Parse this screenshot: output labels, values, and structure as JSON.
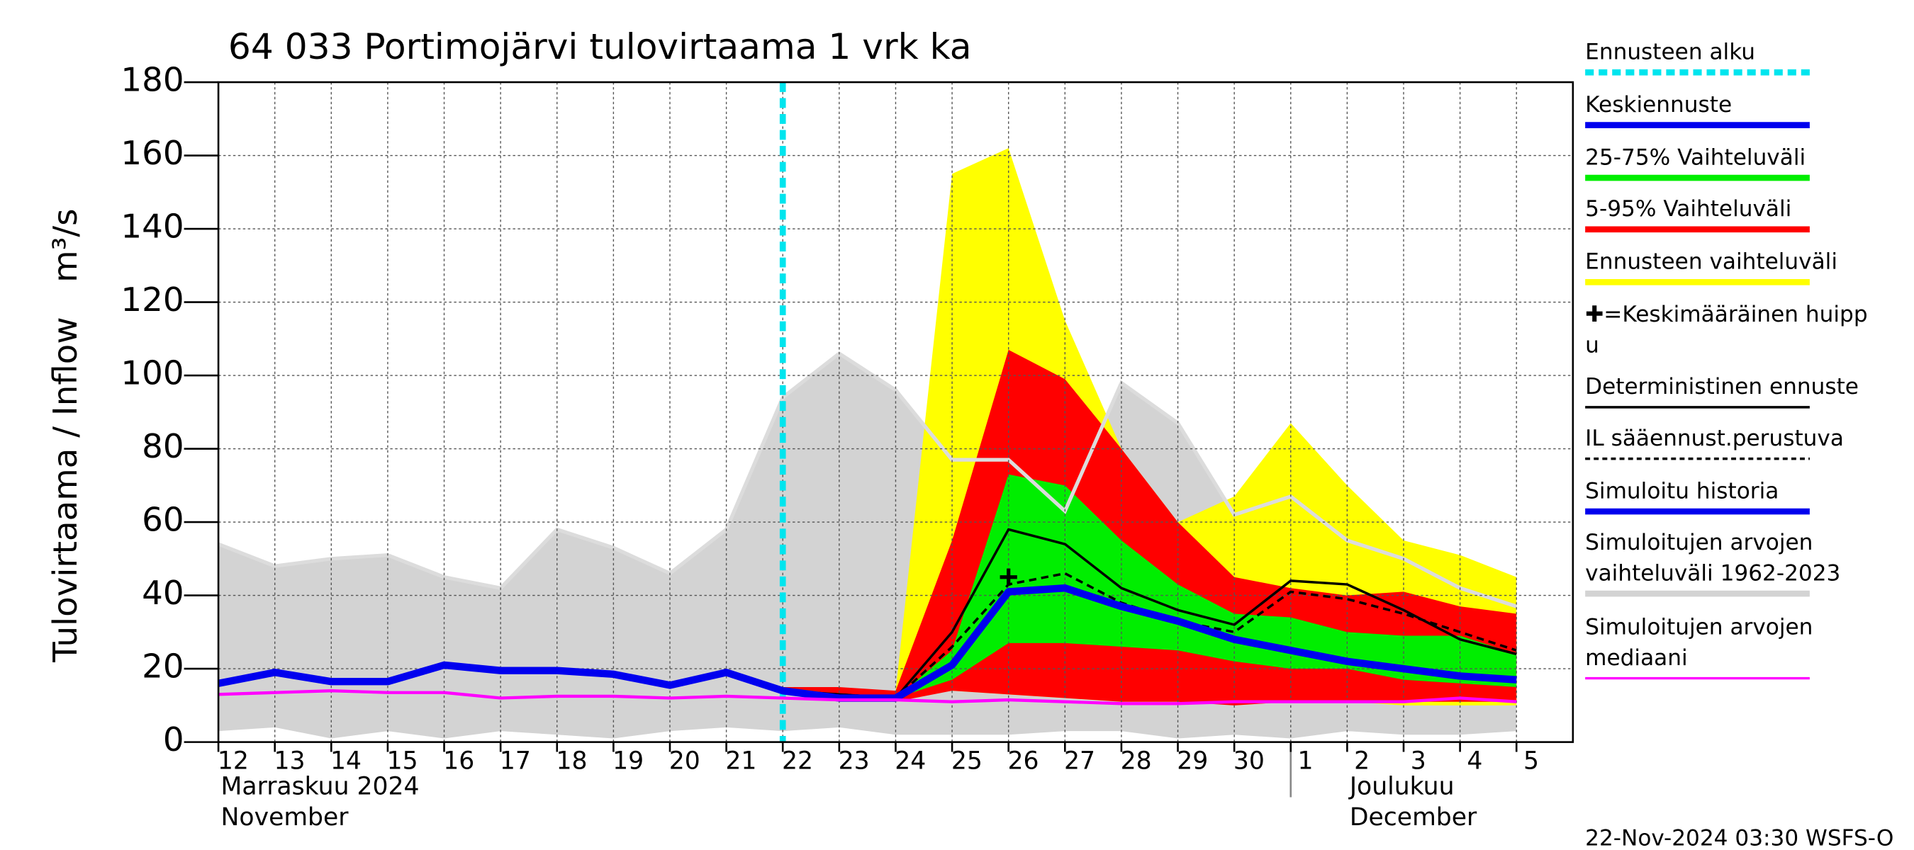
{
  "chart_data": {
    "type": "band-line",
    "title": "64 033 Portimojärvi tulovirtaama 1 vrk ka",
    "ylabel": [
      "Tulovirtaama / Inflow",
      "m³/s"
    ],
    "month_labels": [
      [
        "Marraskuu 2024",
        "November"
      ],
      [
        "Joulukuu",
        "December"
      ]
    ],
    "footer": "22-Nov-2024 03:30 WSFS-O",
    "categories": [
      "12",
      "13",
      "14",
      "15",
      "16",
      "17",
      "18",
      "19",
      "20",
      "21",
      "22",
      "23",
      "24",
      "25",
      "26",
      "27",
      "28",
      "29",
      "30",
      "1",
      "2",
      "3",
      "4",
      "5"
    ],
    "ylim": [
      0,
      180
    ],
    "yticks": [
      0,
      20,
      40,
      60,
      80,
      100,
      120,
      140,
      160,
      180
    ],
    "grid": true,
    "forecast_start": "22",
    "forecast_start_color": "#00e5ee",
    "bands": [
      {
        "color": "#d3d3d3",
        "high": [
          54,
          48,
          50,
          51,
          45,
          42,
          58,
          53,
          46,
          58,
          94,
          106,
          96,
          77,
          77,
          63,
          98,
          87,
          62,
          67,
          55,
          50,
          42,
          37
        ],
        "low": [
          3,
          4,
          1,
          3,
          1,
          3,
          2,
          1,
          3,
          4,
          3,
          4,
          2,
          2,
          2,
          3,
          3,
          1,
          2,
          1,
          3,
          2,
          2,
          3
        ]
      },
      {
        "color": "#ffff00",
        "high": [
          null,
          null,
          null,
          null,
          null,
          null,
          null,
          null,
          null,
          null,
          15,
          14,
          14,
          155,
          162,
          115,
          80,
          60,
          67,
          87,
          70,
          55,
          51,
          45
        ],
        "low": [
          null,
          null,
          null,
          null,
          null,
          null,
          null,
          null,
          null,
          null,
          14,
          12,
          12,
          14,
          13,
          12,
          11,
          12,
          10,
          11,
          11,
          10,
          10,
          10
        ]
      },
      {
        "color": "#ff0000",
        "high": [
          null,
          null,
          null,
          null,
          null,
          null,
          null,
          null,
          null,
          null,
          15,
          15,
          14,
          55,
          107,
          99,
          80,
          60,
          45,
          42,
          40,
          41,
          37,
          35
        ],
        "low": [
          null,
          null,
          null,
          null,
          null,
          null,
          null,
          null,
          null,
          null,
          14,
          12,
          11,
          14,
          13,
          12,
          11,
          11,
          10,
          11,
          11,
          11,
          11,
          11
        ]
      },
      {
        "color": "#00ee00",
        "high": [
          null,
          null,
          null,
          null,
          null,
          null,
          null,
          null,
          null,
          null,
          15,
          13,
          12,
          25,
          73,
          70,
          55,
          43,
          35,
          34,
          30,
          29,
          29,
          24
        ],
        "low": [
          null,
          null,
          null,
          null,
          null,
          null,
          null,
          null,
          null,
          null,
          14,
          13,
          12,
          17,
          27,
          27,
          26,
          25,
          22,
          20,
          20,
          17,
          16,
          15
        ]
      }
    ],
    "series": [
      {
        "color": "#000000",
        "width": 2,
        "dash": false,
        "values": [
          null,
          null,
          null,
          null,
          null,
          null,
          null,
          null,
          null,
          null,
          14,
          13,
          12,
          30,
          58,
          54,
          42,
          36,
          32,
          44,
          43,
          36,
          28,
          24
        ]
      },
      {
        "color": "#000000",
        "width": 2,
        "dash": true,
        "values": [
          null,
          null,
          null,
          null,
          null,
          null,
          null,
          null,
          null,
          null,
          14,
          13,
          12,
          26,
          43,
          46,
          38,
          33,
          30,
          41,
          39,
          35,
          30,
          25
        ]
      },
      {
        "color": "#0000ee",
        "width": 6,
        "dash": false,
        "values": [
          16,
          19,
          16.5,
          16.5,
          21,
          19.5,
          19.5,
          18.5,
          15.5,
          19,
          14,
          12,
          12,
          21,
          41,
          42,
          37,
          33,
          28,
          25,
          22,
          20,
          18,
          17
        ]
      },
      {
        "color": "#ff00ff",
        "width": 2.5,
        "dash": false,
        "values": [
          13,
          13.5,
          14,
          13.5,
          13.5,
          12,
          12.5,
          12.5,
          12,
          12.5,
          12,
          11.5,
          11.5,
          11,
          11.5,
          11,
          10.5,
          10.5,
          11,
          11,
          11,
          11,
          12,
          11
        ]
      }
    ],
    "peak": {
      "category": "26",
      "value": 45
    },
    "legend": [
      {
        "lines": [
          "Ennusteen alku"
        ],
        "color": "#00e5ee",
        "style": "dash-thick"
      },
      {
        "lines": [
          "Keskiennuste"
        ],
        "color": "#0000ee",
        "style": "thick"
      },
      {
        "lines": [
          "25-75% Vaihteluväli"
        ],
        "color": "#00ee00",
        "style": "thick"
      },
      {
        "lines": [
          "5-95% Vaihteluväli"
        ],
        "color": "#ff0000",
        "style": "thick"
      },
      {
        "lines": [
          "Ennusteen vaihteluväli"
        ],
        "color": "#ffff00",
        "style": "thick"
      },
      {
        "lines": [
          "✚=Keskimääräinen huipp",
          "u"
        ],
        "color": "#000000",
        "style": "none"
      },
      {
        "lines": [
          "Deterministinen ennuste"
        ],
        "color": "#000000",
        "style": "thin"
      },
      {
        "lines": [
          "IL sääennust.perustuva"
        ],
        "color": "#000000",
        "style": "dash-thin"
      },
      {
        "lines": [
          "Simuloitu historia"
        ],
        "color": "#0000ee",
        "style": "thick"
      },
      {
        "lines": [
          "Simuloitujen arvojen",
          "vaihteluväli 1962-2023"
        ],
        "color": "#d3d3d3",
        "style": "thick"
      },
      {
        "lines": [
          "Simuloitujen arvojen",
          "mediaani"
        ],
        "color": "#ff00ff",
        "style": "thin"
      }
    ]
  }
}
